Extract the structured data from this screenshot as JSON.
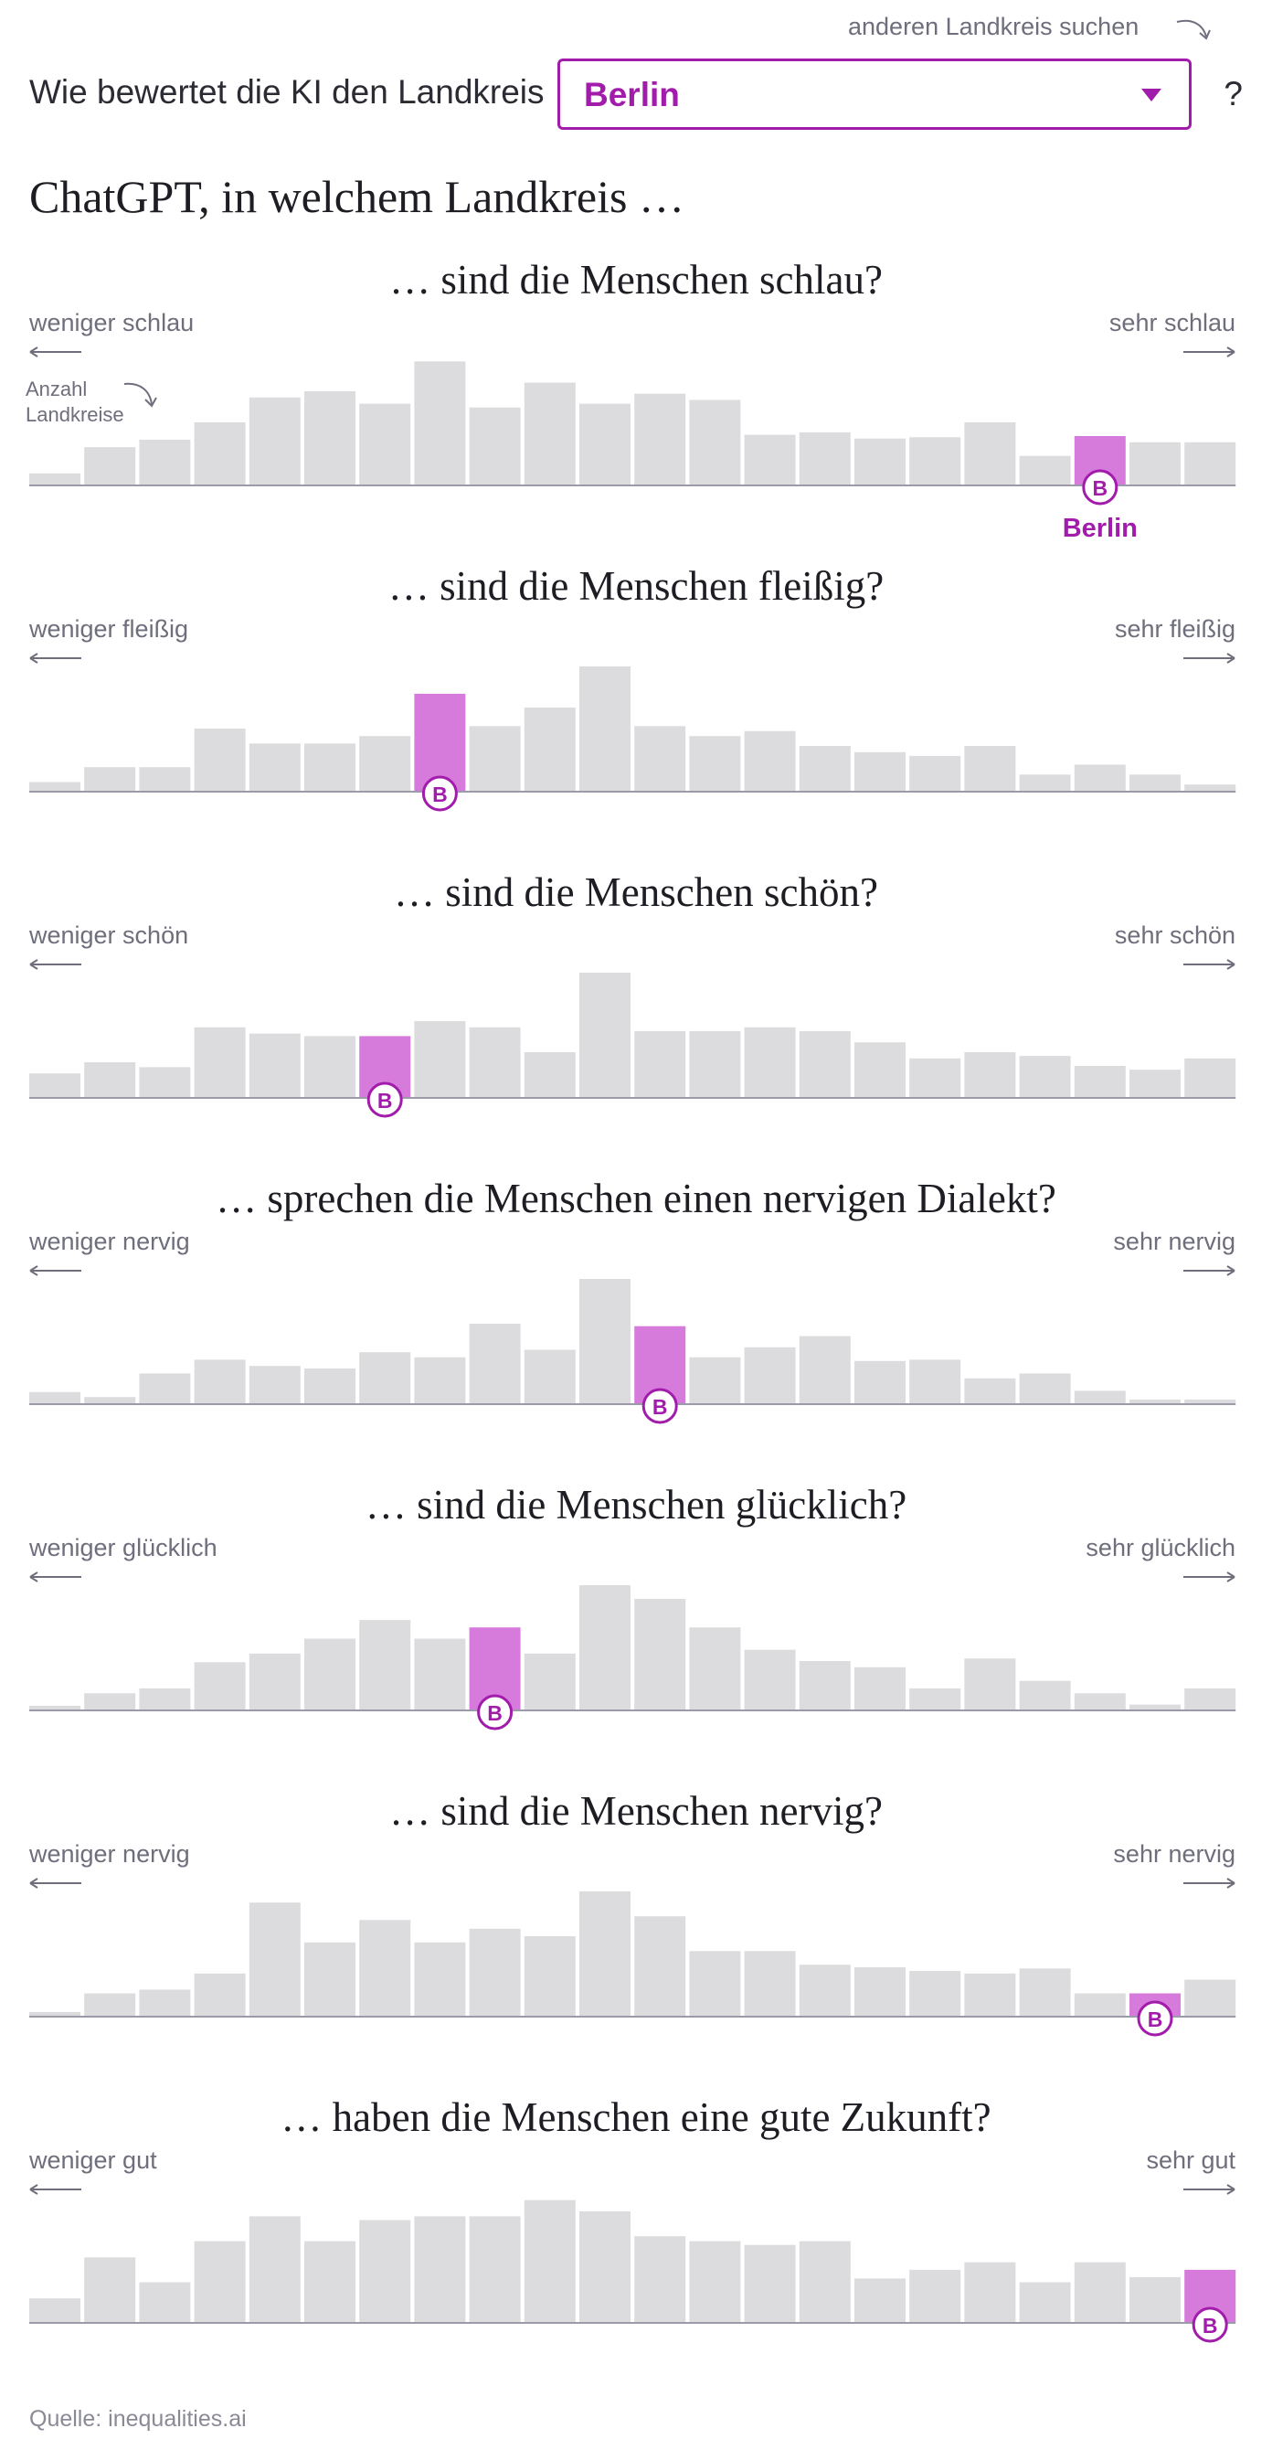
{
  "header": {
    "search_hint": "anderen Landkreis suchen",
    "selector_prefix": "Wie bewertet die KI den Landkreis",
    "selected_district": "Berlin",
    "selector_suffix": "?",
    "heading": "ChatGPT, in welchem Landkreis …"
  },
  "count_label_line1": "Anzahl",
  "count_label_line2": "Landkreise",
  "highlight_label": "Berlin",
  "marker_letter": "B",
  "source": "Quelle: inequalities.ai",
  "colors": {
    "bar": "#dcdcde",
    "highlight": "#d67bdb",
    "accent": "#a21cab",
    "baseline": "#9a9aa8"
  },
  "chart_data": [
    {
      "type": "bar",
      "title": "… sind die Menschen schlau?",
      "xlabel_left": "weniger schlau",
      "xlabel_right": "sehr schlau",
      "ylabel": "Anzahl Landkreise",
      "values": [
        9,
        30,
        36,
        50,
        70,
        75,
        65,
        99,
        62,
        82,
        65,
        73,
        68,
        40,
        42,
        37,
        38,
        50,
        23,
        39,
        34,
        34
      ],
      "highlight_index": 19,
      "ylim": [
        0,
        100
      ]
    },
    {
      "type": "bar",
      "title": "… sind die Menschen fleißig?",
      "xlabel_left": "weniger fleißig",
      "xlabel_right": "sehr fleißig",
      "values": [
        7,
        19,
        19,
        50,
        38,
        38,
        44,
        78,
        52,
        67,
        100,
        52,
        44,
        48,
        36,
        31,
        28,
        36,
        13,
        21,
        13,
        5
      ],
      "highlight_index": 7,
      "ylim": [
        0,
        100
      ]
    },
    {
      "type": "bar",
      "title": "… sind die Menschen schön?",
      "xlabel_left": "weniger schön",
      "xlabel_right": "sehr schön",
      "values": [
        19,
        28,
        24,
        56,
        51,
        49,
        49,
        61,
        56,
        36,
        100,
        53,
        53,
        56,
        53,
        44,
        31,
        36,
        33,
        25,
        22,
        31
      ],
      "highlight_index": 6,
      "ylim": [
        0,
        100
      ]
    },
    {
      "type": "bar",
      "title": "… sprechen die Menschen einen nervigen Dialekt?",
      "xlabel_left": "weniger nervig",
      "xlabel_right": "sehr nervig",
      "values": [
        9,
        5,
        24,
        35,
        30,
        28,
        41,
        37,
        64,
        43,
        100,
        62,
        37,
        45,
        54,
        34,
        35,
        20,
        24,
        10,
        3,
        3
      ],
      "highlight_index": 11,
      "ylim": [
        0,
        100
      ]
    },
    {
      "type": "bar",
      "title": "… sind die Menschen glücklich?",
      "xlabel_left": "weniger glücklich",
      "xlabel_right": "sehr glücklich",
      "values": [
        3,
        13,
        17,
        38,
        45,
        57,
        72,
        57,
        66,
        45,
        100,
        89,
        66,
        48,
        39,
        34,
        17,
        41,
        23,
        13,
        4,
        17
      ],
      "highlight_index": 8,
      "ylim": [
        0,
        100
      ]
    },
    {
      "type": "bar",
      "title": "… sind die Menschen nervig?",
      "xlabel_left": "weniger nervig",
      "xlabel_right": "sehr nervig",
      "values": [
        3,
        18,
        21,
        34,
        91,
        59,
        77,
        59,
        70,
        64,
        100,
        80,
        52,
        52,
        41,
        39,
        36,
        34,
        38,
        18,
        18,
        29
      ],
      "highlight_index": 20,
      "ylim": [
        0,
        100
      ]
    },
    {
      "type": "bar",
      "title": "… haben die Menschen eine gute Zukunft?",
      "xlabel_left": "weniger gut",
      "xlabel_right": "sehr gut",
      "values": [
        19,
        52,
        32,
        65,
        85,
        65,
        82,
        85,
        85,
        98,
        89,
        69,
        65,
        62,
        65,
        35,
        42,
        48,
        32,
        48,
        36,
        42
      ],
      "highlight_index": 21,
      "ylim": [
        0,
        100
      ]
    }
  ]
}
